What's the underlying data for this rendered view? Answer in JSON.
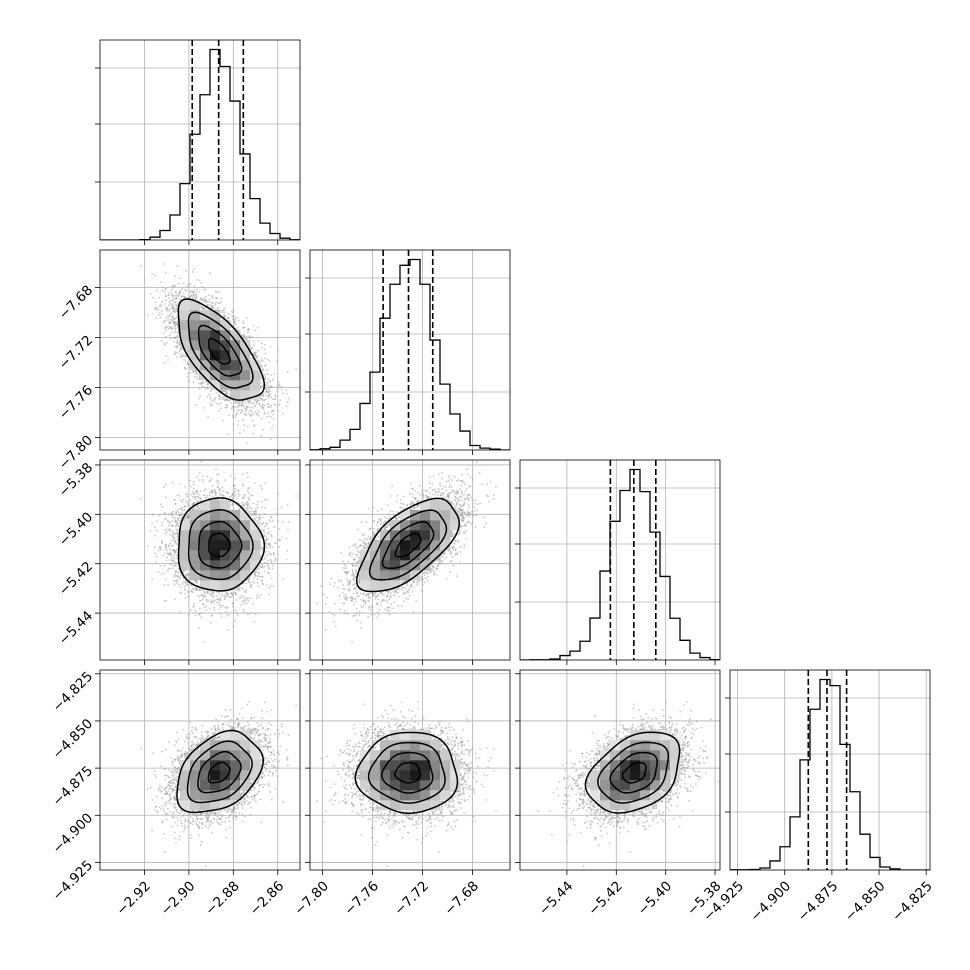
{
  "colors": {
    "line": "#000000",
    "grid": "#b0b0b0",
    "points": "#9a9a9a",
    "frame": "#000000"
  },
  "chart_data": {
    "type": "corner",
    "parameters": [
      {
        "mean": -2.8865,
        "std": 0.0096,
        "range": [
          -2.94,
          -2.85
        ],
        "quantiles": [
          -2.8985,
          -2.8866,
          -2.8755
        ],
        "ticks": [
          -2.92,
          -2.9,
          -2.88,
          -2.86
        ],
        "tick_labels": [
          "−2.92",
          "−2.90",
          "−2.88",
          "−2.86"
        ]
      },
      {
        "mean": -7.7315,
        "std": 0.02,
        "range": [
          -7.81,
          -7.65
        ],
        "quantiles": [
          -7.7515,
          -7.7312,
          -7.7118
        ],
        "ticks": [
          -7.8,
          -7.76,
          -7.72,
          -7.68
        ],
        "tick_labels": [
          "−7.80",
          "−7.76",
          "−7.72",
          "−7.68"
        ]
      },
      {
        "mean": -5.4125,
        "std": 0.0094,
        "range": [
          -5.459,
          -5.378
        ],
        "quantiles": [
          -5.4224,
          -5.4129,
          -5.404
        ],
        "ticks": [
          -5.44,
          -5.42,
          -5.4,
          -5.38
        ],
        "tick_labels": [
          "−5.44",
          "−5.42",
          "−5.40",
          "−5.38"
        ]
      },
      {
        "mean": -4.8775,
        "std": 0.0107,
        "range": [
          -4.929,
          -4.823
        ],
        "quantiles": [
          -4.8875,
          -4.8776,
          -4.8672
        ],
        "ticks": [
          -4.925,
          -4.9,
          -4.875,
          -4.85,
          -4.825
        ],
        "tick_labels": [
          "−4.925",
          "−4.900",
          "−4.875",
          "−4.850",
          "−4.825"
        ]
      }
    ],
    "correlations": [
      {
        "pair": [
          1,
          0
        ],
        "rho": -0.65
      },
      {
        "pair": [
          2,
          0
        ],
        "rho": 0.0
      },
      {
        "pair": [
          2,
          1
        ],
        "rho": 0.62
      },
      {
        "pair": [
          3,
          0
        ],
        "rho": 0.35
      },
      {
        "pair": [
          3,
          1
        ],
        "rho": 0.0
      },
      {
        "pair": [
          3,
          2
        ],
        "rho": 0.35
      }
    ],
    "histogram_bins": 20,
    "contour_levels": [
      0.118,
      0.393,
      0.675,
      0.865
    ],
    "grid": true,
    "samples": 6000
  }
}
